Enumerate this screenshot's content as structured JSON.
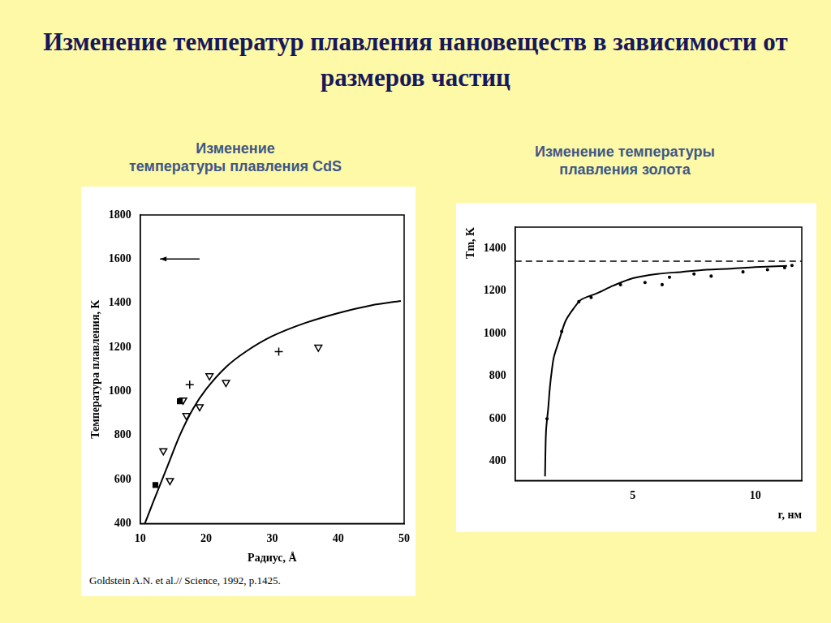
{
  "title": "Изменение температур плавления нановеществ в зависимости от размеров частиц",
  "citation": "Goldstein A.N. et al.// Science, 1992, p.1425.",
  "chart_data": [
    {
      "type": "scatter",
      "title": [
        "Изменение",
        "температуры плавления CdS"
      ],
      "x_label": "Радиус, Å",
      "y_label": "Температура плавления, K",
      "xlim": [
        10,
        50
      ],
      "xticks": [
        10,
        20,
        30,
        40,
        50
      ],
      "ylim": [
        400,
        1800
      ],
      "yticks": [
        400,
        600,
        800,
        1000,
        1200,
        1400,
        1600,
        1800
      ],
      "grid": false,
      "arrow": {
        "x": [
          13,
          19
        ],
        "y": 1600
      },
      "series": [
        {
          "type": "line",
          "color": "#000000",
          "marker": "none",
          "x": [
            10.7,
            12,
            14,
            16,
            18,
            20,
            23,
            26,
            30,
            35,
            40,
            45,
            49.5
          ],
          "values": [
            400,
            500,
            650,
            800,
            920,
            1010,
            1110,
            1180,
            1250,
            1310,
            1355,
            1390,
            1410
          ]
        },
        {
          "type": "scatter",
          "color": "#000000",
          "marker": "square",
          "x": [
            12.3,
            16
          ],
          "values": [
            575,
            955
          ]
        },
        {
          "type": "scatter",
          "color": "#000000",
          "marker": "triangle_down",
          "x": [
            13.5,
            14.5,
            16.5,
            17,
            19,
            20.5,
            23,
            37
          ],
          "values": [
            730,
            595,
            960,
            890,
            930,
            1070,
            1040,
            1200
          ]
        },
        {
          "type": "scatter",
          "color": "#000000",
          "marker": "cross",
          "x": [
            17.5,
            31
          ],
          "values": [
            1030,
            1180
          ]
        }
      ]
    },
    {
      "type": "scatter",
      "title": [
        "Изменение температуры",
        "плавления золота"
      ],
      "x_label": "r, нм",
      "y_label": "Tm, K",
      "xlim": [
        0.2,
        11.9
      ],
      "xticks": [
        5,
        10
      ],
      "ylim": [
        310,
        1500
      ],
      "yticks": [
        400,
        600,
        800,
        1000,
        1200,
        1400
      ],
      "grid": false,
      "reference_line": {
        "value": 1340,
        "line_style": "dashed"
      },
      "series": [
        {
          "type": "line",
          "color": "#000000",
          "marker": "none",
          "x": [
            1.42,
            1.46,
            1.55,
            1.62,
            1.7,
            1.78,
            2.0,
            2.26,
            2.6,
            2.9,
            3.55,
            4.2,
            5,
            6,
            7,
            8,
            9,
            10,
            11.3
          ],
          "values": [
            330,
            540,
            650,
            750,
            830,
            890,
            970,
            1060,
            1120,
            1160,
            1190,
            1225,
            1260,
            1280,
            1290,
            1300,
            1305,
            1312,
            1318
          ]
        },
        {
          "type": "scatter",
          "color": "#000000",
          "marker": "dot",
          "x": [
            1.5,
            2.1,
            2.8,
            3.3,
            4.5,
            5.5,
            6.2,
            6.5,
            7.5,
            8.2,
            9.5,
            10.5,
            11.2,
            11.5
          ],
          "values": [
            600,
            1010,
            1150,
            1170,
            1230,
            1240,
            1230,
            1265,
            1280,
            1270,
            1290,
            1300,
            1310,
            1320
          ]
        }
      ]
    }
  ]
}
